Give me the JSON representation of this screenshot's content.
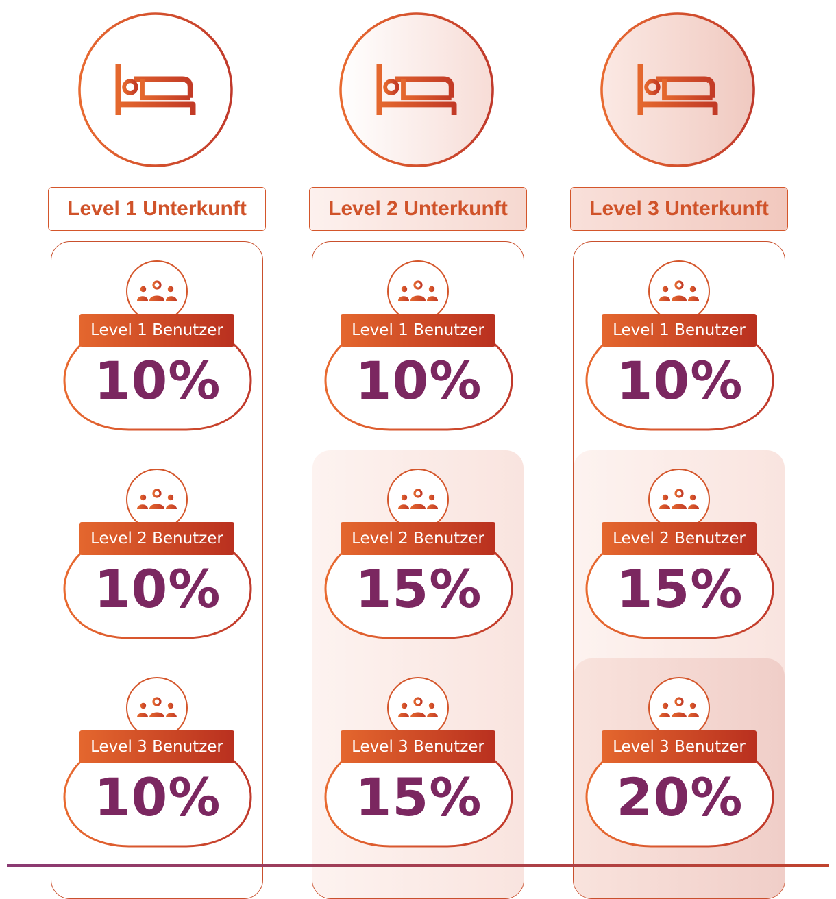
{
  "colors": {
    "accent_orange": "#e4672e",
    "accent_red": "#b9301f",
    "percent_purple": "#7b2760",
    "outline": "#d4562b"
  },
  "icons": {
    "accommodation": "bed-icon",
    "user": "users-group-icon"
  },
  "columns": [
    {
      "title": "Level 1 Unterkunft",
      "tiers": [
        {
          "label": "Level 1 Benutzer",
          "value": "10%"
        },
        {
          "label": "Level 2 Benutzer",
          "value": "10%"
        },
        {
          "label": "Level 3 Benutzer",
          "value": "10%"
        }
      ]
    },
    {
      "title": "Level 2 Unterkunft",
      "tiers": [
        {
          "label": "Level 1 Benutzer",
          "value": "10%"
        },
        {
          "label": "Level 2 Benutzer",
          "value": "15%"
        },
        {
          "label": "Level 3 Benutzer",
          "value": "15%"
        }
      ]
    },
    {
      "title": "Level 3 Unterkunft",
      "tiers": [
        {
          "label": "Level 1 Benutzer",
          "value": "10%"
        },
        {
          "label": "Level 2 Benutzer",
          "value": "15%"
        },
        {
          "label": "Level 3 Benutzer",
          "value": "20%"
        }
      ]
    }
  ]
}
